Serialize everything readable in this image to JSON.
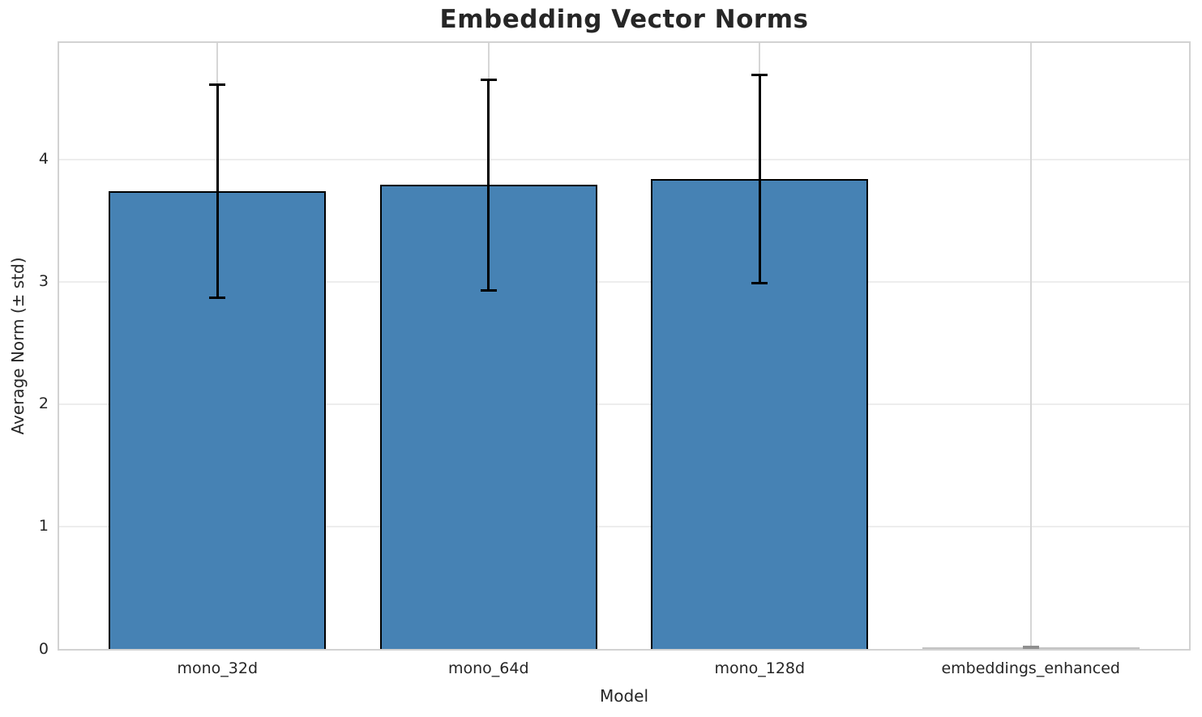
{
  "chart_data": {
    "type": "bar",
    "title": "Embedding Vector Norms",
    "xlabel": "Model",
    "ylabel": "Average Norm (± std)",
    "categories": [
      "mono_32d",
      "mono_64d",
      "mono_128d",
      "embeddings_enhanced"
    ],
    "values": [
      3.74,
      3.79,
      3.84,
      0.0
    ],
    "errors": [
      0.87,
      0.86,
      0.85,
      0.0
    ],
    "ylim": [
      0,
      4.95
    ],
    "yticks": [
      0,
      1,
      2,
      3,
      4
    ],
    "ytick_labels": [
      "0",
      "1",
      "2",
      "3",
      "4"
    ],
    "grid": true,
    "legend": "none",
    "bar_width_ratio": 0.8,
    "colors": {
      "bar_fill": "#4682b4",
      "bar_edge": "#000000",
      "error_bar": "#000000",
      "grid_horizontal": "#ededed",
      "grid_vertical": "#d6d6d6",
      "spine": "#d2d2d2",
      "text": "#262626",
      "zero_bar_line": "#c2c2c2",
      "zero_error_cap": "#8f8f8f"
    }
  }
}
